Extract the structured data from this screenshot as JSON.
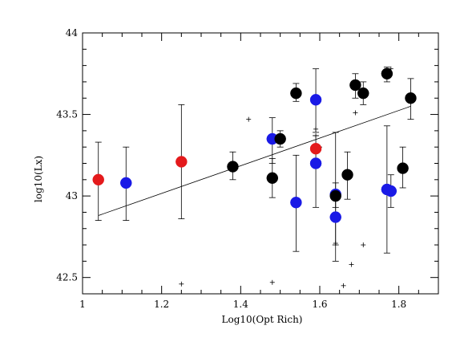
{
  "chart_data": {
    "type": "scatter",
    "title": "",
    "xlabel": "Log10(Opt Rich)",
    "ylabel": "log10(Lx)",
    "xlim": [
      1.0,
      1.9
    ],
    "ylim": [
      42.4,
      44.0
    ],
    "x_ticks": [
      1,
      1.2,
      1.4,
      1.6,
      1.8
    ],
    "y_ticks": [
      42.5,
      43,
      43.5,
      44
    ],
    "x_tick_labels": [
      "1",
      "1.2",
      "1.4",
      "1.6",
      "1.8"
    ],
    "y_tick_labels": [
      "42.5",
      "43",
      "43.5",
      "44"
    ],
    "grid": false,
    "legend": "none",
    "fit_line": {
      "x": [
        1.04,
        1.83
      ],
      "y": [
        42.88,
        43.55
      ]
    },
    "series": [
      {
        "color": "#e41a1c",
        "points": [
          {
            "x": 1.04,
            "y": 43.1,
            "err_low": 42.85,
            "err_high": 43.33
          },
          {
            "x": 1.25,
            "y": 43.21,
            "err_low": 42.86,
            "err_high": 43.56
          },
          {
            "x": 1.59,
            "y": 43.29,
            "err_low": null,
            "err_high": null
          }
        ]
      },
      {
        "color": "#1a1ae6",
        "points": [
          {
            "x": 1.11,
            "y": 43.08,
            "err_low": 42.85,
            "err_high": 43.3
          },
          {
            "x": 1.48,
            "y": 43.35,
            "err_low": 43.2,
            "err_high": 43.48
          },
          {
            "x": 1.54,
            "y": 42.96,
            "err_low": 42.66,
            "err_high": 43.25
          },
          {
            "x": 1.59,
            "y": 43.59,
            "err_low": 43.39,
            "err_high": 43.78
          },
          {
            "x": 1.59,
            "y": 43.2,
            "err_low": 42.93,
            "err_high": 43.37
          },
          {
            "x": 1.64,
            "y": 43.01,
            "err_low": 42.7,
            "err_high": 43.39
          },
          {
            "x": 1.64,
            "y": 42.87,
            "err_low": 42.6,
            "err_high": 43.02
          },
          {
            "x": 1.77,
            "y": 43.04,
            "err_low": 42.65,
            "err_high": 43.43
          },
          {
            "x": 1.78,
            "y": 43.03,
            "err_low": 42.93,
            "err_high": 43.13
          }
        ]
      },
      {
        "color": "#000000",
        "points": [
          {
            "x": 1.38,
            "y": 43.18,
            "err_low": 43.1,
            "err_high": 43.27
          },
          {
            "x": 1.48,
            "y": 43.11,
            "err_low": 42.99,
            "err_high": 43.23
          },
          {
            "x": 1.5,
            "y": 43.35,
            "err_low": 43.3,
            "err_high": 43.4
          },
          {
            "x": 1.54,
            "y": 43.63,
            "err_low": 43.58,
            "err_high": 43.69
          },
          {
            "x": 1.64,
            "y": 43.0,
            "err_low": 42.93,
            "err_high": 43.08
          },
          {
            "x": 1.67,
            "y": 43.13,
            "err_low": 42.98,
            "err_high": 43.27
          },
          {
            "x": 1.69,
            "y": 43.68,
            "err_low": 43.6,
            "err_high": 43.75
          },
          {
            "x": 1.71,
            "y": 43.63,
            "err_low": 43.56,
            "err_high": 43.7
          },
          {
            "x": 1.77,
            "y": 43.75,
            "err_low": 43.7,
            "err_high": 43.79
          },
          {
            "x": 1.81,
            "y": 43.17,
            "err_low": 43.05,
            "err_high": 43.3
          },
          {
            "x": 1.83,
            "y": 43.6,
            "err_low": 43.47,
            "err_high": 43.72
          }
        ]
      }
    ],
    "crosses": [
      {
        "x": 1.25,
        "y": 42.46
      },
      {
        "x": 1.42,
        "y": 43.47
      },
      {
        "x": 1.48,
        "y": 42.47
      },
      {
        "x": 1.59,
        "y": 43.41
      },
      {
        "x": 1.59,
        "y": 43.37
      },
      {
        "x": 1.6,
        "y": 43.3
      },
      {
        "x": 1.64,
        "y": 42.71
      },
      {
        "x": 1.66,
        "y": 42.45
      },
      {
        "x": 1.68,
        "y": 42.58
      },
      {
        "x": 1.69,
        "y": 43.51
      },
      {
        "x": 1.71,
        "y": 42.7
      },
      {
        "x": 1.78,
        "y": 43.78
      }
    ]
  }
}
